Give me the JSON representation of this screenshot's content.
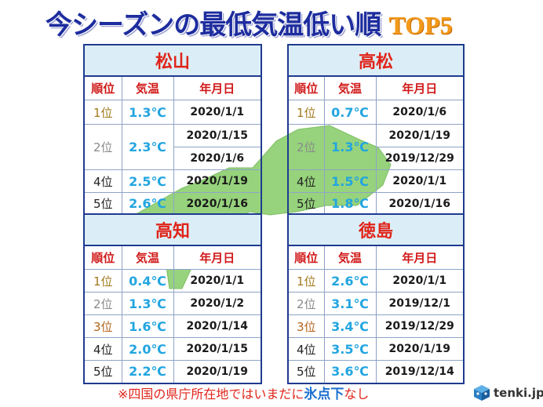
{
  "title": {
    "main": "今シーズンの最低気温低い順",
    "top": "TOP5"
  },
  "colors": {
    "title": "#1d2c9e",
    "top_badge": "#f39a1b",
    "city_name": "#e0241a",
    "header_text": "#d11a1a",
    "temperature": "#22a5e0",
    "rank_1": "#a07a1c",
    "rank_2": "#8a8a8a",
    "rank_3": "#b5651d",
    "rank_default": "#222222",
    "highlight": "#1b6fcf",
    "map": "#96d37c"
  },
  "headers": {
    "rank": "順位",
    "temp": "気温",
    "date": "年月日"
  },
  "tables": {
    "matsuyama": {
      "name": "松山",
      "rows": [
        {
          "rank": "1位",
          "temp": "1.3℃",
          "date": "2020/1/1"
        },
        {
          "rank": "2位",
          "temp": "2.3℃",
          "date": "2020/1/15"
        },
        {
          "date": "2020/1/6"
        },
        {
          "rank": "4位",
          "temp": "2.5℃",
          "date": "2020/1/19"
        },
        {
          "rank": "5位",
          "temp": "2.6℃",
          "date": "2020/1/16"
        }
      ]
    },
    "takamatsu": {
      "name": "高松",
      "rows": [
        {
          "rank": "1位",
          "temp": "0.7℃",
          "date": "2020/1/6"
        },
        {
          "rank": "2位",
          "temp": "1.3℃",
          "date": "2020/1/19"
        },
        {
          "date": "2019/12/29"
        },
        {
          "rank": "4位",
          "temp": "1.5℃",
          "date": "2020/1/1"
        },
        {
          "rank": "5位",
          "temp": "1.8℃",
          "date": "2020/1/16"
        }
      ]
    },
    "kochi": {
      "name": "高知",
      "rows": [
        {
          "rank": "1位",
          "temp": "0.4℃",
          "date": "2020/1/1"
        },
        {
          "rank": "2位",
          "temp": "1.3℃",
          "date": "2020/1/2"
        },
        {
          "rank": "3位",
          "temp": "1.6℃",
          "date": "2020/1/14"
        },
        {
          "rank": "4位",
          "temp": "2.0℃",
          "date": "2020/1/15"
        },
        {
          "rank": "5位",
          "temp": "2.2℃",
          "date": "2020/1/19"
        }
      ]
    },
    "tokushima": {
      "name": "徳島",
      "rows": [
        {
          "rank": "1位",
          "temp": "2.6℃",
          "date": "2020/1/1"
        },
        {
          "rank": "2位",
          "temp": "3.1℃",
          "date": "2019/12/1"
        },
        {
          "rank": "3位",
          "temp": "3.4℃",
          "date": "2019/12/29"
        },
        {
          "rank": "4位",
          "temp": "3.5℃",
          "date": "2020/1/19"
        },
        {
          "rank": "5位",
          "temp": "3.6℃",
          "date": "2019/12/14"
        }
      ]
    }
  },
  "footnote": {
    "before": "※四国の県庁所在地ではいまだに",
    "highlight": "氷点下",
    "after": "なし"
  },
  "brand": {
    "name": "tenki.jp",
    "icon": "tenki-cube-icon"
  }
}
